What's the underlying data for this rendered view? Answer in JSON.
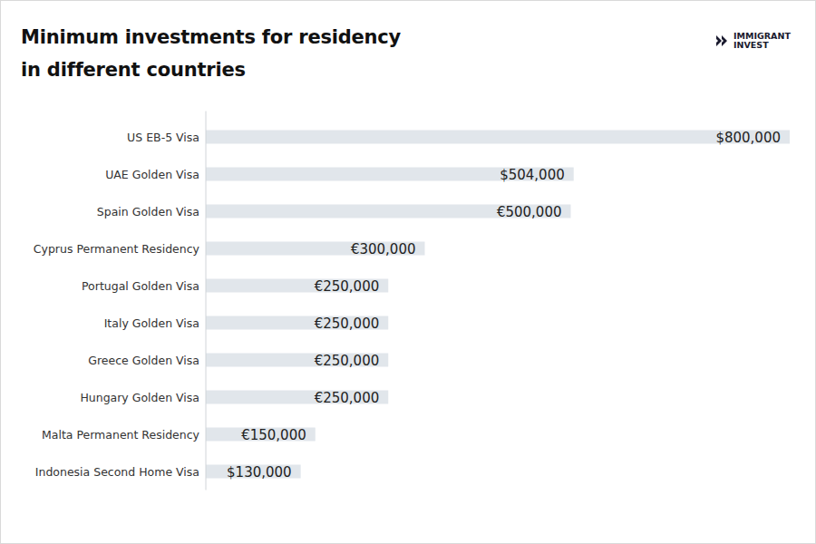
{
  "logo": [
    "IMMIGRANT",
    "INVEST"
  ],
  "chart_data": {
    "type": "bar",
    "title": "Minimum investments for residency\nin different countries",
    "orientation": "horizontal",
    "categories": [
      "US EB-5 Visa",
      "UAE Golden Visa",
      "Spain Golden Visa",
      "Cyprus Permanent Residency",
      "Portugal Golden Visa",
      "Italy Golden Visa",
      "Greece Golden Visa",
      "Hungary Golden Visa",
      "Malta Permanent Residency",
      "Indonesia Second Home Visa"
    ],
    "values": [
      800000,
      504000,
      500000,
      300000,
      250000,
      250000,
      250000,
      250000,
      150000,
      130000
    ],
    "value_labels": [
      "$800,000",
      "$504,000",
      "€500,000",
      "€300,000",
      "€250,000",
      "€250,000",
      "€250,000",
      "€250,000",
      "€150,000",
      "$130,000"
    ],
    "color": "#e1e6eb",
    "xlim": [
      0,
      800000
    ],
    "grid": false,
    "data_labels": true,
    "tick_labels": "y"
  }
}
